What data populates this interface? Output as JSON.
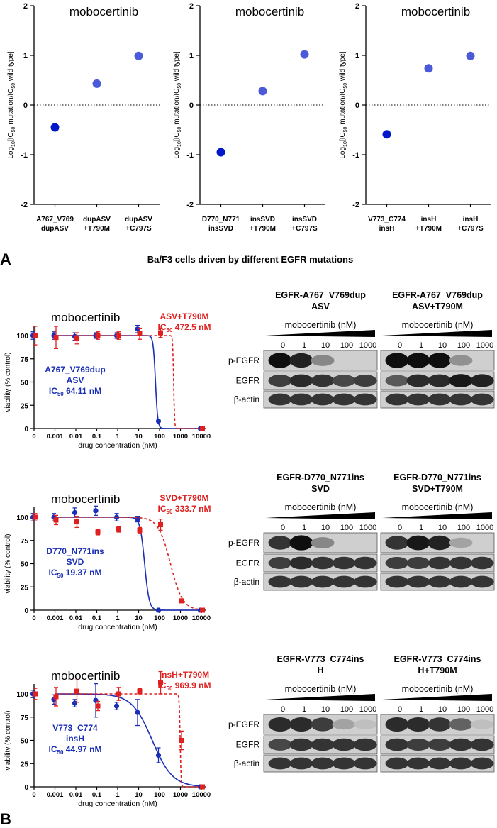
{
  "panel_labels": {
    "a": "A",
    "b": "B"
  },
  "section_title": "Ba/F3 cells driven by different EGFR mutations",
  "chart_data": [
    {
      "type": "scatter",
      "title": "mobocertinib",
      "ylabel_parts": [
        "Log",
        "10",
        "[IC",
        "50",
        " mutation/IC",
        "50",
        " wild type]"
      ],
      "ylim": [
        -2,
        2
      ],
      "yticks": [
        -2,
        -1,
        0,
        1,
        2
      ],
      "reference_line": 0,
      "categories": [
        [
          "A767_V769",
          "dupASV"
        ],
        [
          "dupASV",
          "+T790M"
        ],
        [
          "dupASV",
          "+C797S"
        ]
      ],
      "values": [
        -0.45,
        0.43,
        0.99
      ],
      "colors": [
        "#0018c8",
        "#4a5ad8",
        "#4a5ad8"
      ]
    },
    {
      "type": "scatter",
      "title": "mobocertinib",
      "ylabel_parts": [
        "Log",
        "10",
        "[IC",
        "50",
        " mutation/IC",
        "50",
        " wild type]"
      ],
      "ylim": [
        -2,
        2
      ],
      "yticks": [
        -2,
        -1,
        0,
        1,
        2
      ],
      "reference_line": 0,
      "categories": [
        [
          "D770_N771",
          "insSVD"
        ],
        [
          "insSVD",
          "+T790M"
        ],
        [
          "insSVD",
          "+C797S"
        ]
      ],
      "values": [
        -0.95,
        0.28,
        1.02
      ],
      "colors": [
        "#0018c8",
        "#4a5ad8",
        "#4a5ad8"
      ]
    },
    {
      "type": "scatter",
      "title": "mobocertinib",
      "ylabel_parts": [
        "Log",
        "10",
        "[IC",
        "50",
        " mutation/IC",
        "50",
        " wild type]"
      ],
      "ylim": [
        -2,
        2
      ],
      "yticks": [
        -2,
        -1,
        0,
        1,
        2
      ],
      "reference_line": 0,
      "categories": [
        [
          "V773_C774",
          "insH"
        ],
        [
          "insH",
          "+T790M"
        ],
        [
          "insH",
          "+C797S"
        ]
      ],
      "values": [
        -0.59,
        0.74,
        0.99
      ],
      "colors": [
        "#0018c8",
        "#4a5ad8",
        "#4a5ad8"
      ]
    },
    {
      "type": "line",
      "title": "mobocertinib",
      "ylabel": "viability (% control)",
      "xlabel": "drug concentration (nM)",
      "xticks": [
        "0",
        "0.001",
        "0.01",
        "0.1",
        "1",
        "10",
        "100",
        "1000",
        "10000"
      ],
      "ylim": [
        0,
        100
      ],
      "yticks": [
        0,
        25,
        50,
        75,
        100
      ],
      "series": [
        {
          "name_lines": [
            "A767_V769dup",
            "ASV"
          ],
          "ic50_label": "64.11 nM",
          "ic50": 64.11,
          "hill": 8,
          "color": "#1a2fb8",
          "dash": false,
          "x": [
            0,
            0.001,
            0.01,
            0.1,
            1,
            10,
            100,
            10000
          ],
          "y": [
            100,
            100,
            99,
            100,
            100,
            107,
            8,
            0
          ],
          "err": [
            4,
            4,
            4,
            3,
            3,
            4,
            0,
            0
          ]
        },
        {
          "name_lines": [
            "ASV+T790M"
          ],
          "ic50_label": "472.5 nM",
          "ic50": 472.5,
          "hill": 20,
          "color": "#e02020",
          "dash": true,
          "x": [
            0,
            0.001,
            0.01,
            0.1,
            1,
            10,
            100,
            10000
          ],
          "y": [
            100,
            98,
            97,
            100,
            100,
            102,
            103,
            0
          ],
          "err": [
            10,
            12,
            6,
            4,
            4,
            6,
            5,
            0
          ]
        }
      ]
    },
    {
      "type": "line",
      "title": "mobocertinib",
      "ylabel": "viability (% control)",
      "xlabel": "drug concentration (nM)",
      "xticks": [
        "0",
        "0.001",
        "0.01",
        "0.1",
        "1",
        "10",
        "100",
        "1000",
        "10000"
      ],
      "ylim": [
        0,
        100
      ],
      "yticks": [
        0,
        25,
        50,
        75,
        100
      ],
      "series": [
        {
          "name_lines": [
            "D770_N771ins",
            "SVD"
          ],
          "ic50_label": "19.37 nM",
          "ic50": 19.37,
          "hill": 4,
          "color": "#1a2fb8",
          "dash": false,
          "x": [
            0,
            0.001,
            0.01,
            0.1,
            1,
            10,
            100,
            10000
          ],
          "y": [
            100,
            100,
            105,
            107,
            100,
            98,
            0,
            0
          ],
          "err": [
            4,
            4,
            5,
            5,
            4,
            3,
            0,
            0
          ]
        },
        {
          "name_lines": [
            "SVD+T790M"
          ],
          "ic50_label": "333.7 nM",
          "ic50": 333.7,
          "hill": 1.5,
          "color": "#e02020",
          "dash": true,
          "x": [
            0,
            0.001,
            0.01,
            0.1,
            1,
            10,
            100,
            1000,
            10000
          ],
          "y": [
            100,
            97,
            95,
            84,
            87,
            86,
            92,
            10,
            0
          ],
          "err": [
            4,
            5,
            6,
            3,
            3,
            3,
            6,
            0,
            0
          ]
        }
      ]
    },
    {
      "type": "line",
      "title": "mobocertinib",
      "ylabel": "viability (% control)",
      "xlabel": "drug concentration (nM)",
      "xticks": [
        "0",
        "0.001",
        "0.01",
        "0.1",
        "1",
        "10",
        "100",
        "1000",
        "10000"
      ],
      "ylim": [
        0,
        100
      ],
      "yticks": [
        0,
        25,
        50,
        75,
        100
      ],
      "series": [
        {
          "name_lines": [
            "V773_C774",
            "insH"
          ],
          "ic50_label": "44.97 nM",
          "ic50": 44.97,
          "hill": 0.9,
          "color": "#1a2fb8",
          "dash": false,
          "x": [
            0,
            0.001,
            0.01,
            0.1,
            1,
            10,
            100,
            10000
          ],
          "y": [
            100,
            94,
            90,
            93,
            87,
            80,
            34,
            0
          ],
          "err": [
            4,
            5,
            4,
            18,
            4,
            14,
            8,
            0
          ]
        },
        {
          "name_lines": [
            "insH+T790M"
          ],
          "ic50_label": "969.9 nM",
          "ic50": 969.9,
          "hill": 20,
          "color": "#e02020",
          "dash": true,
          "x": [
            0,
            0.001,
            0.01,
            0.1,
            1,
            10,
            100,
            1000,
            10000
          ],
          "y": [
            100,
            97,
            103,
            87,
            100,
            103,
            112,
            50,
            0
          ],
          "err": [
            6,
            10,
            12,
            5,
            7,
            3,
            12,
            10,
            0
          ]
        }
      ]
    }
  ],
  "blots": [
    {
      "title_lines": [
        "EGFR-A767_V769dup",
        "ASV"
      ],
      "drug": "mobocertinib (nM)",
      "lanes": [
        "0",
        "1",
        "10",
        "100",
        "1000"
      ],
      "bands": {
        "p-EGFR": [
          1.0,
          0.9,
          0.35,
          0.0,
          0.0
        ],
        "EGFR": [
          0.75,
          0.85,
          0.8,
          0.7,
          0.75
        ],
        "β-actin": [
          0.8,
          0.8,
          0.8,
          0.8,
          0.8
        ]
      }
    },
    {
      "title_lines": [
        "EGFR-A767_V769dup",
        "ASV+T790M"
      ],
      "drug": "mobocertinib (nM)",
      "lanes": [
        "0",
        "1",
        "10",
        "100",
        "1000"
      ],
      "bands": {
        "p-EGFR": [
          1.0,
          1.0,
          1.0,
          0.3,
          0.0
        ],
        "EGFR": [
          0.6,
          0.85,
          0.85,
          0.95,
          0.9
        ],
        "β-actin": [
          0.8,
          0.8,
          0.8,
          0.8,
          0.8
        ]
      }
    },
    {
      "title_lines": [
        "EGFR-D770_N771ins",
        "SVD"
      ],
      "drug": "mobocertinib (nM)",
      "lanes": [
        "0",
        "1",
        "10",
        "100",
        "1000"
      ],
      "bands": {
        "p-EGFR": [
          0.8,
          1.0,
          0.35,
          0.0,
          0.0
        ],
        "EGFR": [
          0.75,
          0.85,
          0.8,
          0.8,
          0.8
        ],
        "β-actin": [
          0.8,
          0.8,
          0.8,
          0.8,
          0.8
        ]
      }
    },
    {
      "title_lines": [
        "EGFR-D770_N771ins",
        "SVD+T790M"
      ],
      "drug": "mobocertinib (nM)",
      "lanes": [
        "0",
        "1",
        "10",
        "100",
        "1000"
      ],
      "bands": {
        "p-EGFR": [
          0.8,
          0.95,
          0.9,
          0.2,
          0.0
        ],
        "EGFR": [
          0.75,
          0.75,
          0.8,
          0.8,
          0.8
        ],
        "β-actin": [
          0.8,
          0.8,
          0.8,
          0.8,
          0.8
        ]
      }
    },
    {
      "title_lines": [
        "EGFR-V773_C774ins",
        "H"
      ],
      "drug": "mobocertinib (nM)",
      "lanes": [
        "0",
        "1",
        "10",
        "100",
        "1000"
      ],
      "bands": {
        "p-EGFR": [
          0.85,
          0.85,
          0.75,
          0.2,
          0.05
        ],
        "EGFR": [
          0.7,
          0.8,
          0.8,
          0.8,
          0.8
        ],
        "β-actin": [
          0.8,
          0.8,
          0.8,
          0.8,
          0.8
        ]
      }
    },
    {
      "title_lines": [
        "EGFR-V773_C774ins",
        "H+T790M"
      ],
      "drug": "mobocertinib (nM)",
      "lanes": [
        "0",
        "1",
        "10",
        "100",
        "1000"
      ],
      "bands": {
        "p-EGFR": [
          0.85,
          0.85,
          0.8,
          0.55,
          0.05
        ],
        "EGFR": [
          0.8,
          0.75,
          0.75,
          0.8,
          0.8
        ],
        "β-actin": [
          0.8,
          0.8,
          0.8,
          0.8,
          0.8
        ]
      }
    }
  ]
}
